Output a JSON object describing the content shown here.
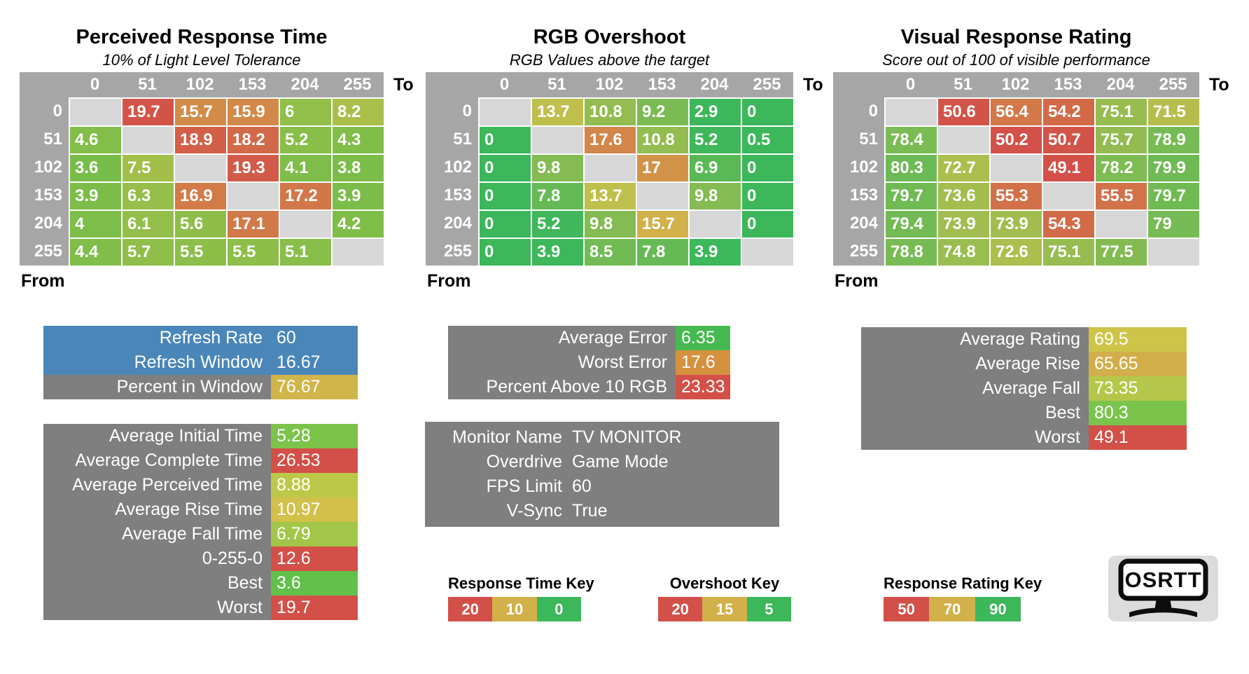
{
  "colors": {
    "header_grey": "#a6a6a6",
    "diag_grey": "#d7d7d7",
    "box_grey": "#7f7f7f",
    "blue": "#4a86b8",
    "red": "#d25048",
    "gold": "#d2b04a",
    "green": "#3cb75a"
  },
  "chart_data": [
    {
      "type": "heatmap",
      "title": "Perceived Response Time",
      "subtitle": "10% of Light Level Tolerance",
      "axis_to_label": "To",
      "axis_from_label": "From",
      "columns": [
        "0",
        "51",
        "102",
        "153",
        "204",
        "255"
      ],
      "rows": [
        "0",
        "51",
        "102",
        "153",
        "204",
        "255"
      ],
      "values": [
        [
          null,
          19.7,
          15.7,
          15.9,
          6,
          8.2
        ],
        [
          4.6,
          null,
          18.9,
          18.2,
          5.2,
          4.3
        ],
        [
          3.6,
          7.5,
          null,
          19.3,
          4.1,
          3.8
        ],
        [
          3.9,
          6.3,
          16.9,
          null,
          17.2,
          3.9
        ],
        [
          4,
          6.1,
          5.6,
          17.1,
          null,
          4.2
        ],
        [
          4.4,
          5.7,
          5.5,
          5.5,
          5.1,
          null
        ]
      ],
      "scale_stops": [
        [
          0,
          "#52bc49"
        ],
        [
          12,
          "#d2c04a"
        ],
        [
          20,
          "#d25048"
        ]
      ]
    },
    {
      "type": "heatmap",
      "title": "RGB Overshoot",
      "subtitle": "RGB Values above the target",
      "axis_to_label": "To",
      "axis_from_label": "From",
      "columns": [
        "0",
        "51",
        "102",
        "153",
        "204",
        "255"
      ],
      "rows": [
        "0",
        "51",
        "102",
        "153",
        "204",
        "255"
      ],
      "values": [
        [
          null,
          13.7,
          10.8,
          9.2,
          2.9,
          0
        ],
        [
          0,
          null,
          17.6,
          10.8,
          5.2,
          0.5
        ],
        [
          0,
          9.8,
          null,
          17,
          6.9,
          0
        ],
        [
          0,
          7.8,
          13.7,
          null,
          9.8,
          0
        ],
        [
          0,
          5.2,
          9.8,
          15.7,
          null,
          0
        ],
        [
          0,
          3.9,
          8.5,
          7.8,
          3.9,
          null
        ]
      ],
      "scale_stops": [
        [
          5,
          "#3cb75a"
        ],
        [
          15,
          "#d2c04a"
        ],
        [
          20,
          "#d25048"
        ]
      ]
    },
    {
      "type": "heatmap",
      "title": "Visual Response Rating",
      "subtitle": "Score out of 100 of visible performance",
      "axis_to_label": "To",
      "axis_from_label": "From",
      "columns": [
        "0",
        "51",
        "102",
        "153",
        "204",
        "255"
      ],
      "rows": [
        "0",
        "51",
        "102",
        "153",
        "204",
        "255"
      ],
      "values": [
        [
          null,
          50.6,
          56.4,
          54.2,
          75.1,
          71.5
        ],
        [
          78.4,
          null,
          50.2,
          50.7,
          75.7,
          78.9
        ],
        [
          80.3,
          72.7,
          null,
          49.1,
          78.2,
          79.9
        ],
        [
          79.7,
          73.6,
          55.3,
          null,
          55.5,
          79.7
        ],
        [
          79.4,
          73.9,
          73.9,
          54.3,
          null,
          79
        ],
        [
          78.8,
          74.8,
          72.6,
          75.1,
          77.5,
          null
        ]
      ],
      "scale_stops": [
        [
          50,
          "#d25048"
        ],
        [
          68,
          "#d2c04a"
        ],
        [
          86,
          "#3cb75a"
        ]
      ]
    }
  ],
  "summary_boxes": {
    "refresh": {
      "rows": [
        {
          "label": "Refresh Rate",
          "value": "60",
          "variant": "blue"
        },
        {
          "label": "Refresh Window",
          "value": "16.67",
          "variant": "blue"
        },
        {
          "label": "Percent in Window",
          "value": "76.67",
          "variant": "grey",
          "value_color": "#d0b54a"
        }
      ]
    },
    "times": {
      "rows": [
        {
          "label": "Average Initial Time",
          "value": "5.28",
          "value_color": "#7cc34a"
        },
        {
          "label": "Average Complete Time",
          "value": "26.53",
          "value_color": "#d25048"
        },
        {
          "label": "Average Perceived Time",
          "value": "8.88",
          "value_color": "#bcc847"
        },
        {
          "label": "Average Rise Time",
          "value": "10.97",
          "value_color": "#d2c04a"
        },
        {
          "label": "Average Fall Time",
          "value": "6.79",
          "value_color": "#a2c647"
        },
        {
          "label": "0-255-0",
          "value": "12.6",
          "value_color": "#d25048"
        },
        {
          "label": "Best",
          "value": "3.6",
          "value_color": "#62c14b"
        },
        {
          "label": "Worst",
          "value": "19.7",
          "value_color": "#d25048"
        }
      ]
    },
    "error": {
      "rows": [
        {
          "label": "Average Error",
          "value": "6.35",
          "value_color": "#46ba51"
        },
        {
          "label": "Worst Error",
          "value": "17.6",
          "value_color": "#d6913f"
        },
        {
          "label": "Percent Above 10 RGB",
          "value": "23.33",
          "value_color": "#d25048"
        }
      ]
    },
    "rating": {
      "rows": [
        {
          "label": "Average Rating",
          "value": "69.5",
          "value_color": "#cfc44a"
        },
        {
          "label": "Average Rise",
          "value": "65.65",
          "value_color": "#d2ae4a"
        },
        {
          "label": "Average Fall",
          "value": "73.35",
          "value_color": "#b5c74a"
        },
        {
          "label": "Best",
          "value": "80.3",
          "value_color": "#7ac44c"
        },
        {
          "label": "Worst",
          "value": "49.1",
          "value_color": "#d25048"
        }
      ]
    }
  },
  "monitor_info": {
    "rows": [
      {
        "label": "Monitor Name",
        "value": "TV MONITOR"
      },
      {
        "label": "Overdrive",
        "value": "Game Mode"
      },
      {
        "label": "FPS Limit",
        "value": "60"
      },
      {
        "label": "V-Sync",
        "value": "True"
      }
    ]
  },
  "keys": [
    {
      "title": "Response Time Key",
      "segments": [
        {
          "label": "20",
          "color": "#d25048"
        },
        {
          "label": "10",
          "color": "#d2b04a"
        },
        {
          "label": "0",
          "color": "#3cb75a"
        }
      ]
    },
    {
      "title": "Overshoot Key",
      "segments": [
        {
          "label": "20",
          "color": "#d25048"
        },
        {
          "label": "15",
          "color": "#d2b04a"
        },
        {
          "label": "5",
          "color": "#3cb75a"
        }
      ]
    },
    {
      "title": "Response Rating Key",
      "segments": [
        {
          "label": "50",
          "color": "#d25048"
        },
        {
          "label": "70",
          "color": "#d2b04a"
        },
        {
          "label": "90",
          "color": "#3cb75a"
        }
      ]
    }
  ],
  "logo": {
    "text": "OSRTT"
  }
}
